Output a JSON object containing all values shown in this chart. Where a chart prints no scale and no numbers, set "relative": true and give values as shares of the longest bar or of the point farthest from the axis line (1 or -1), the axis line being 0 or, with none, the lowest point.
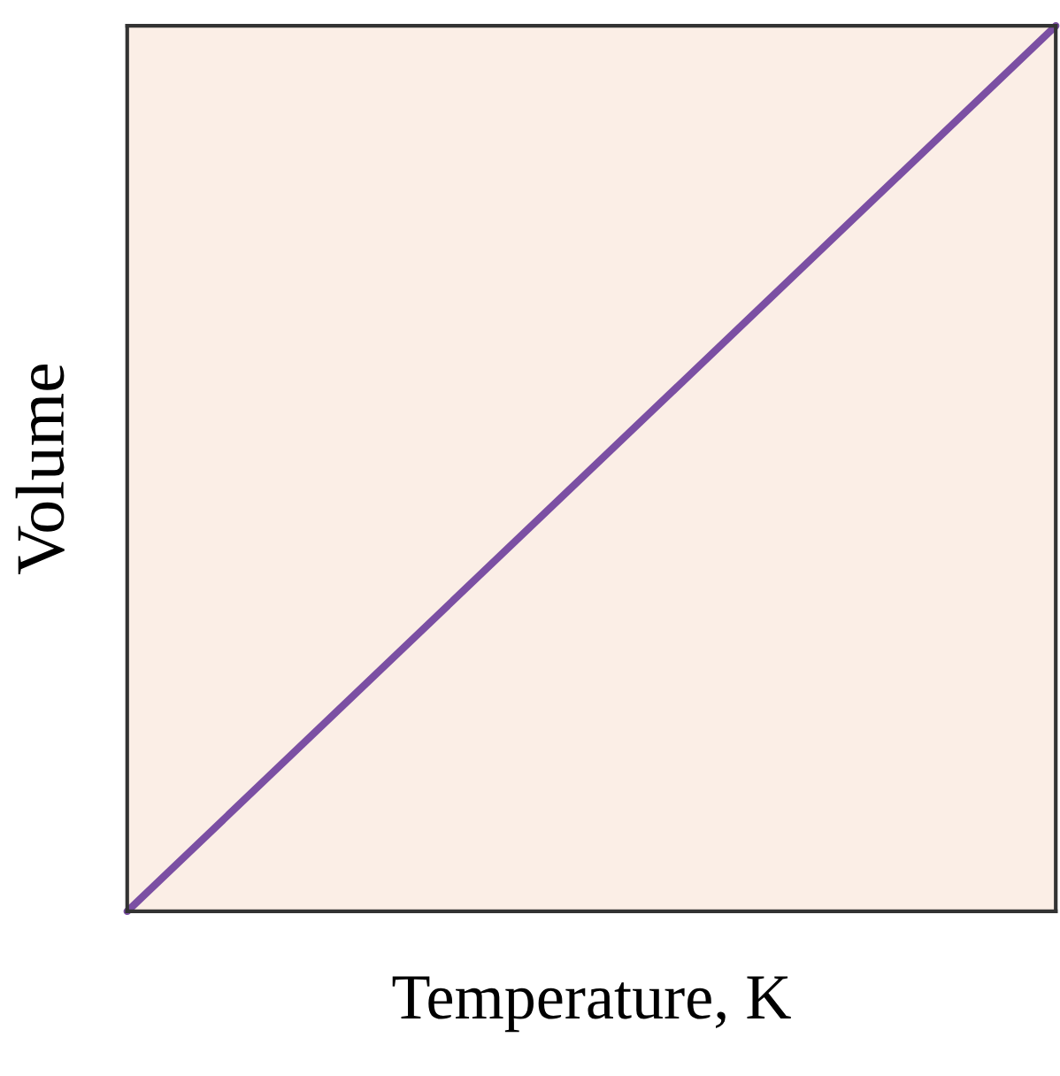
{
  "chart_data": {
    "type": "line",
    "xlabel": "Temperature, K",
    "ylabel": "Volume",
    "categories": [
      null,
      null
    ],
    "relative": true,
    "series": [
      {
        "color": "#7b4fa3",
        "values": [
          0,
          1
        ]
      }
    ],
    "legend": false,
    "marker": "none",
    "line_style": "solid"
  }
}
